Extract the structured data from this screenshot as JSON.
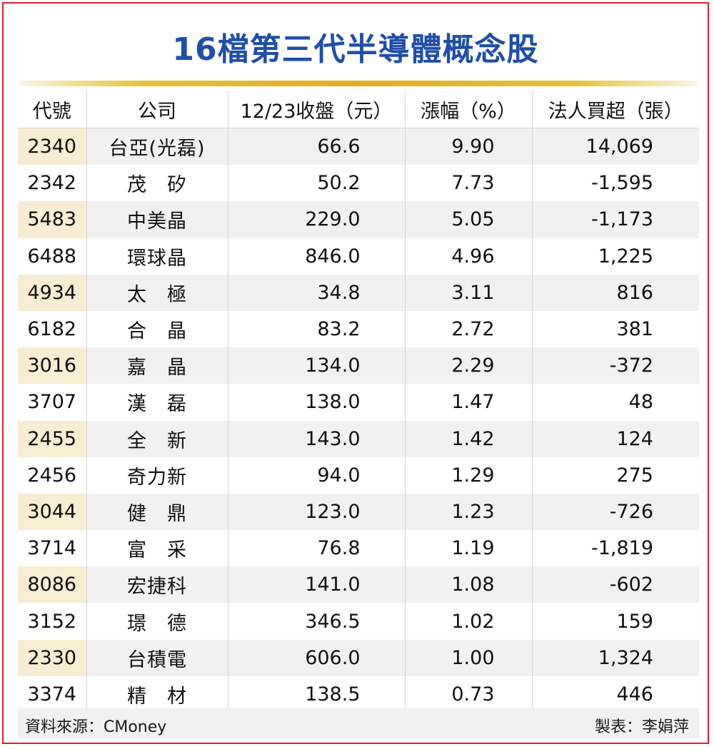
{
  "title": "16檔第三代半導體概念股",
  "columns": [
    "代號",
    "公司",
    "12/23收盤（元）",
    "漲幅（%）",
    "法人買超（張）"
  ],
  "rows": [
    {
      "code": "2340",
      "company": "台亞(光磊)",
      "close": "66.6",
      "change": "9.90",
      "net_buy": "14,069"
    },
    {
      "code": "2342",
      "company": "茂　矽",
      "close": "50.2",
      "change": "7.73",
      "net_buy": "-1,595"
    },
    {
      "code": "5483",
      "company": "中美晶",
      "close": "229.0",
      "change": "5.05",
      "net_buy": "-1,173"
    },
    {
      "code": "6488",
      "company": "環球晶",
      "close": "846.0",
      "change": "4.96",
      "net_buy": "1,225"
    },
    {
      "code": "4934",
      "company": "太　極",
      "close": "34.8",
      "change": "3.11",
      "net_buy": "816"
    },
    {
      "code": "6182",
      "company": "合　晶",
      "close": "83.2",
      "change": "2.72",
      "net_buy": "381"
    },
    {
      "code": "3016",
      "company": "嘉　晶",
      "close": "134.0",
      "change": "2.29",
      "net_buy": "-372"
    },
    {
      "code": "3707",
      "company": "漢　磊",
      "close": "138.0",
      "change": "1.47",
      "net_buy": "48"
    },
    {
      "code": "2455",
      "company": "全　新",
      "close": "143.0",
      "change": "1.42",
      "net_buy": "124"
    },
    {
      "code": "2456",
      "company": "奇力新",
      "close": "94.0",
      "change": "1.29",
      "net_buy": "275"
    },
    {
      "code": "3044",
      "company": "健　鼎",
      "close": "123.0",
      "change": "1.23",
      "net_buy": "-726"
    },
    {
      "code": "3714",
      "company": "富　采",
      "close": "76.8",
      "change": "1.19",
      "net_buy": "-1,819"
    },
    {
      "code": "8086",
      "company": "宏捷科",
      "close": "141.0",
      "change": "1.08",
      "net_buy": "-602"
    },
    {
      "code": "3152",
      "company": "璟　德",
      "close": "346.5",
      "change": "1.02",
      "net_buy": "159"
    },
    {
      "code": "2330",
      "company": "台積電",
      "close": "606.0",
      "change": "1.00",
      "net_buy": "1,324"
    },
    {
      "code": "3374",
      "company": "精　材",
      "close": "138.5",
      "change": "0.73",
      "net_buy": "446"
    }
  ],
  "footer": {
    "source": "資料來源：CMoney",
    "maker": "製表：李娟萍"
  },
  "colors": {
    "title": "#1f4fa8",
    "border": "#e0202a",
    "accent_bar": "#e0b020",
    "code_highlight": "#f7edd3",
    "row_stripe": "#f1f1f1"
  }
}
